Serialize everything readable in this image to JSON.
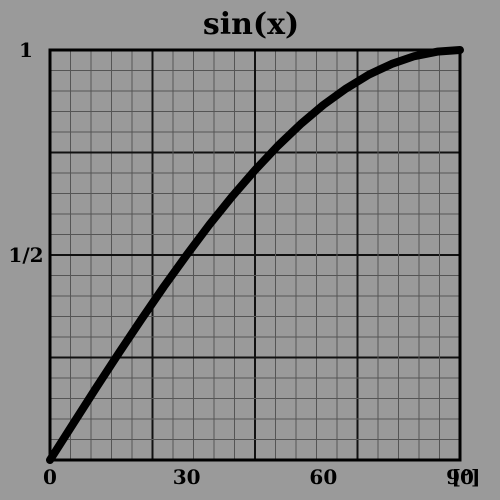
{
  "chart_data": {
    "type": "line",
    "title": "sin(x)",
    "xlabel": "",
    "ylabel": "",
    "x_unit": "[°]",
    "xlim": [
      0,
      90
    ],
    "ylim": [
      0,
      1
    ],
    "x_ticks": [
      0,
      30,
      60,
      90
    ],
    "x_tick_labels": [
      "0",
      "30",
      "60",
      "90"
    ],
    "y_ticks": [
      0.5,
      1
    ],
    "y_tick_labels": [
      "1/2",
      "1"
    ],
    "grid": true,
    "series": [
      {
        "x": [
          0,
          5,
          10,
          15,
          20,
          25,
          30,
          35,
          40,
          45,
          50,
          55,
          60,
          65,
          70,
          75,
          80,
          85,
          90
        ],
        "values": [
          0,
          0.087,
          0.174,
          0.259,
          0.342,
          0.423,
          0.5,
          0.574,
          0.643,
          0.707,
          0.766,
          0.819,
          0.866,
          0.906,
          0.94,
          0.966,
          0.985,
          0.996,
          1
        ]
      }
    ]
  }
}
